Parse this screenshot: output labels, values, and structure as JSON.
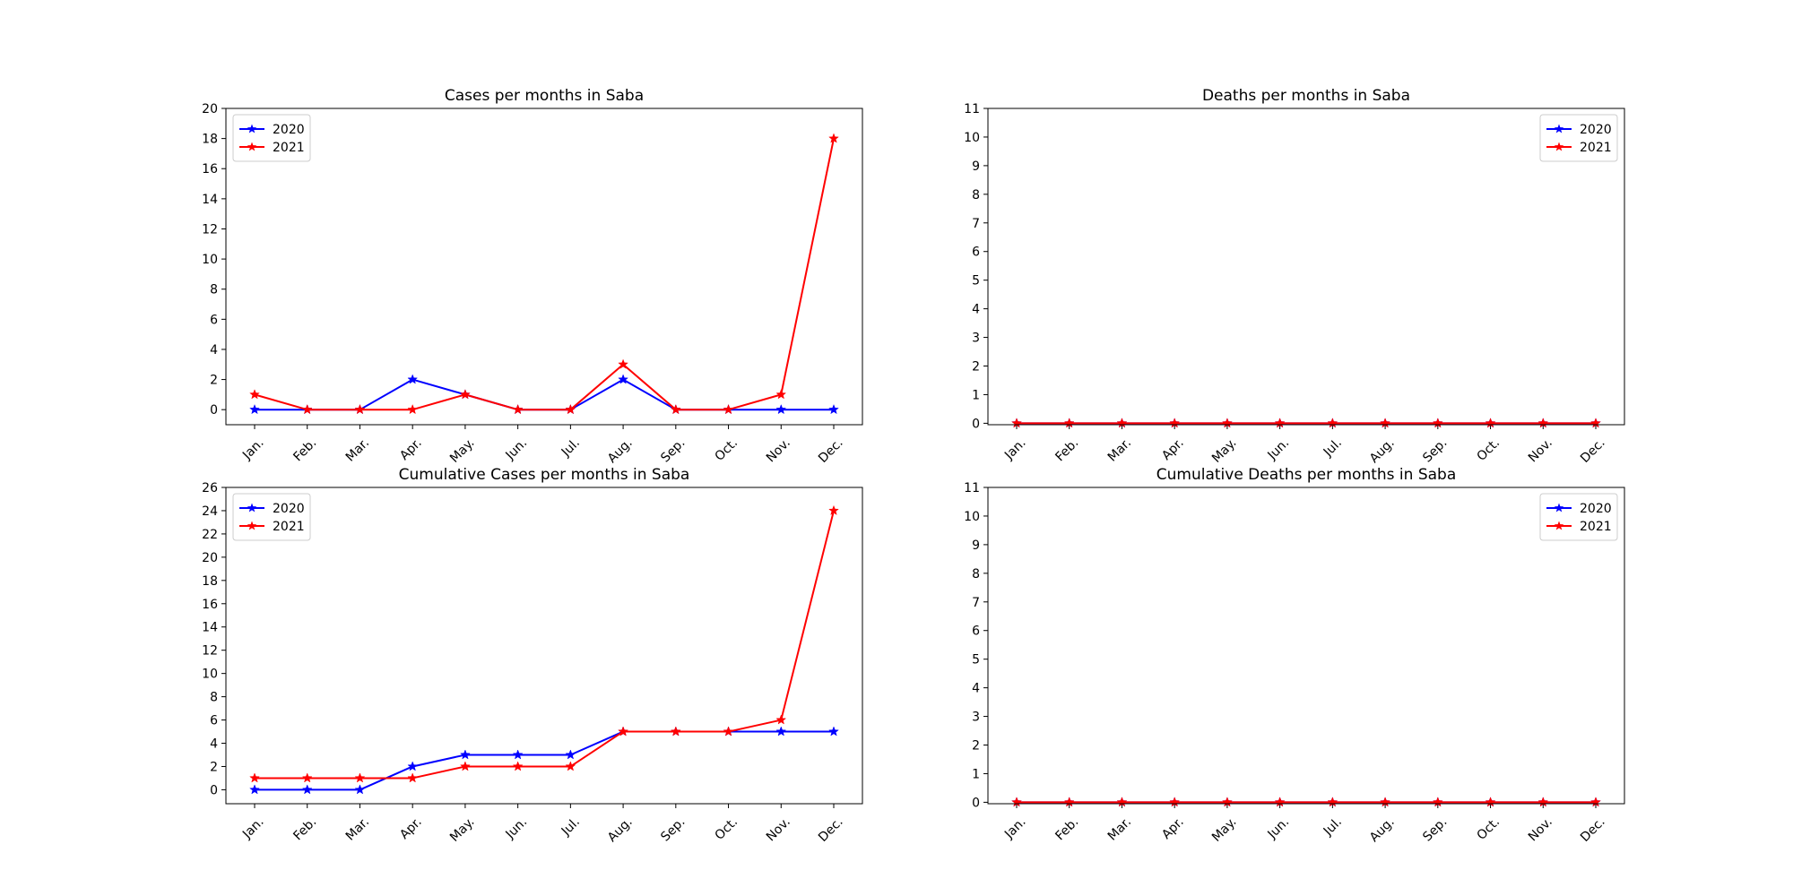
{
  "colors": {
    "2020": "#0000ff",
    "2021": "#ff0000"
  },
  "chart_data": [
    {
      "type": "line",
      "title": "Cases per months in Saba",
      "categories": [
        "Jan.",
        "Feb.",
        "Mar.",
        "Apr.",
        "May.",
        "Jun.",
        "Jul.",
        "Aug.",
        "Sep.",
        "Oct.",
        "Nov.",
        "Dec."
      ],
      "yticks": [
        0,
        2,
        4,
        6,
        8,
        10,
        12,
        14,
        16,
        18,
        20
      ],
      "ylim": [
        -1,
        20
      ],
      "legend_position": "upper-left",
      "series": [
        {
          "name": "2020",
          "color": "#0000ff",
          "marker": "star",
          "values": [
            0,
            0,
            0,
            2,
            1,
            0,
            0,
            2,
            0,
            0,
            0,
            0
          ]
        },
        {
          "name": "2021",
          "color": "#ff0000",
          "marker": "star",
          "values": [
            1,
            0,
            0,
            0,
            1,
            0,
            0,
            3,
            0,
            0,
            1,
            18
          ]
        }
      ]
    },
    {
      "type": "line",
      "title": "Deaths per months in Saba",
      "categories": [
        "Jan.",
        "Feb.",
        "Mar.",
        "Apr.",
        "May.",
        "Jun.",
        "Jul.",
        "Aug.",
        "Sep.",
        "Oct.",
        "Nov.",
        "Dec."
      ],
      "yticks": [
        0,
        1,
        2,
        3,
        4,
        5,
        6,
        7,
        8,
        9,
        10,
        11
      ],
      "ylim": [
        -0.05,
        11
      ],
      "legend_position": "upper-right",
      "series": [
        {
          "name": "2020",
          "color": "#0000ff",
          "marker": "star",
          "values": [
            0,
            0,
            0,
            0,
            0,
            0,
            0,
            0,
            0,
            0,
            0,
            0
          ]
        },
        {
          "name": "2021",
          "color": "#ff0000",
          "marker": "star",
          "values": [
            0,
            0,
            0,
            0,
            0,
            0,
            0,
            0,
            0,
            0,
            0,
            0
          ]
        }
      ]
    },
    {
      "type": "line",
      "title": "Cumulative Cases per months in Saba",
      "categories": [
        "Jan.",
        "Feb.",
        "Mar.",
        "Apr.",
        "May.",
        "Jun.",
        "Jul.",
        "Aug.",
        "Sep.",
        "Oct.",
        "Nov.",
        "Dec."
      ],
      "yticks": [
        0,
        2,
        4,
        6,
        8,
        10,
        12,
        14,
        16,
        18,
        20,
        22,
        24,
        26
      ],
      "ylim": [
        -1.2,
        26
      ],
      "legend_position": "upper-left",
      "series": [
        {
          "name": "2020",
          "color": "#0000ff",
          "marker": "star",
          "values": [
            0,
            0,
            0,
            2,
            3,
            3,
            3,
            5,
            5,
            5,
            5,
            5
          ]
        },
        {
          "name": "2021",
          "color": "#ff0000",
          "marker": "star",
          "values": [
            1,
            1,
            1,
            1,
            2,
            2,
            2,
            5,
            5,
            5,
            6,
            24
          ]
        }
      ]
    },
    {
      "type": "line",
      "title": "Cumulative Deaths per months in Saba",
      "categories": [
        "Jan.",
        "Feb.",
        "Mar.",
        "Apr.",
        "May.",
        "Jun.",
        "Jul.",
        "Aug.",
        "Sep.",
        "Oct.",
        "Nov.",
        "Dec."
      ],
      "yticks": [
        0,
        1,
        2,
        3,
        4,
        5,
        6,
        7,
        8,
        9,
        10,
        11
      ],
      "ylim": [
        -0.05,
        11
      ],
      "legend_position": "upper-right",
      "series": [
        {
          "name": "2020",
          "color": "#0000ff",
          "marker": "star",
          "values": [
            0,
            0,
            0,
            0,
            0,
            0,
            0,
            0,
            0,
            0,
            0,
            0
          ]
        },
        {
          "name": "2021",
          "color": "#ff0000",
          "marker": "star",
          "values": [
            0,
            0,
            0,
            0,
            0,
            0,
            0,
            0,
            0,
            0,
            0,
            0
          ]
        }
      ]
    }
  ]
}
